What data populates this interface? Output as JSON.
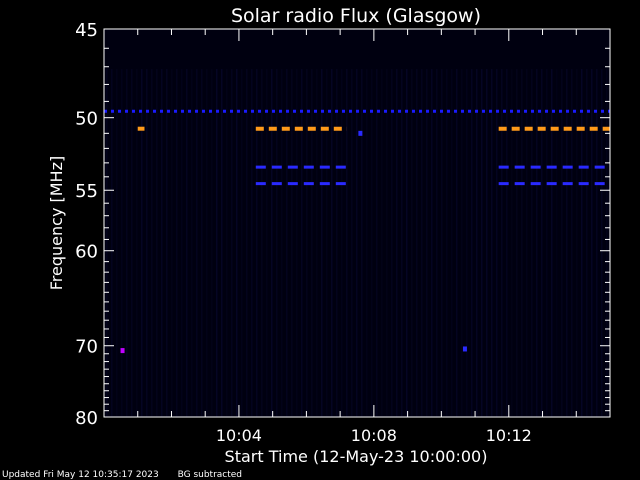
{
  "chart_data": {
    "type": "heatmap",
    "title": "Solar radio Flux (Glasgow)",
    "xlabel": "Start Time (12-May-23 10:00:00)",
    "ylabel": "Frequency [MHz]",
    "x_range_minutes": [
      0,
      15
    ],
    "x_ticks": [
      {
        "minute": 4,
        "label": "10:04"
      },
      {
        "minute": 8,
        "label": "10:08"
      },
      {
        "minute": 12,
        "label": "10:12"
      }
    ],
    "y_range_mhz": [
      45,
      80
    ],
    "y_scale": "reciprocal",
    "y_ticks": [
      {
        "mhz": 45,
        "label": "45"
      },
      {
        "mhz": 50,
        "label": "50"
      },
      {
        "mhz": 55,
        "label": "55"
      },
      {
        "mhz": 60,
        "label": "60"
      },
      {
        "mhz": 70,
        "label": "70"
      },
      {
        "mhz": 80,
        "label": "80"
      }
    ],
    "background_color": "#000010",
    "bands": [
      {
        "mhz": 49.6,
        "minutes": [
          0,
          15
        ],
        "color": "#1a1aff",
        "intensity": "medium"
      },
      {
        "mhz": 50.7,
        "minutes": [
          1.0,
          1.2
        ],
        "color": "#ff9a1a",
        "intensity": "high"
      },
      {
        "mhz": 50.7,
        "minutes": [
          4.5,
          7.2
        ],
        "color": "#ff9a1a",
        "intensity": "high"
      },
      {
        "mhz": 50.7,
        "minutes": [
          11.7,
          15
        ],
        "color": "#ff9a1a",
        "intensity": "high"
      },
      {
        "mhz": 53.3,
        "minutes": [
          4.5,
          7.2
        ],
        "color": "#2a2aff",
        "intensity": "medium"
      },
      {
        "mhz": 53.3,
        "minutes": [
          11.7,
          15
        ],
        "color": "#2a2aff",
        "intensity": "medium"
      },
      {
        "mhz": 54.5,
        "minutes": [
          4.5,
          7.2
        ],
        "color": "#2a2aff",
        "intensity": "medium"
      },
      {
        "mhz": 54.5,
        "minutes": [
          11.7,
          15
        ],
        "color": "#2a2aff",
        "intensity": "medium"
      }
    ],
    "spots": [
      {
        "minute": 0.55,
        "mhz": 70.6,
        "color": "#c000ff"
      },
      {
        "minute": 10.7,
        "mhz": 70.4,
        "color": "#2a2aff"
      },
      {
        "minute": 7.6,
        "mhz": 51.0,
        "color": "#2a2aff"
      }
    ]
  },
  "footer": {
    "updated": "Updated Fri May 12 10:35:17 2023",
    "bg_note": "BG subtracted"
  }
}
